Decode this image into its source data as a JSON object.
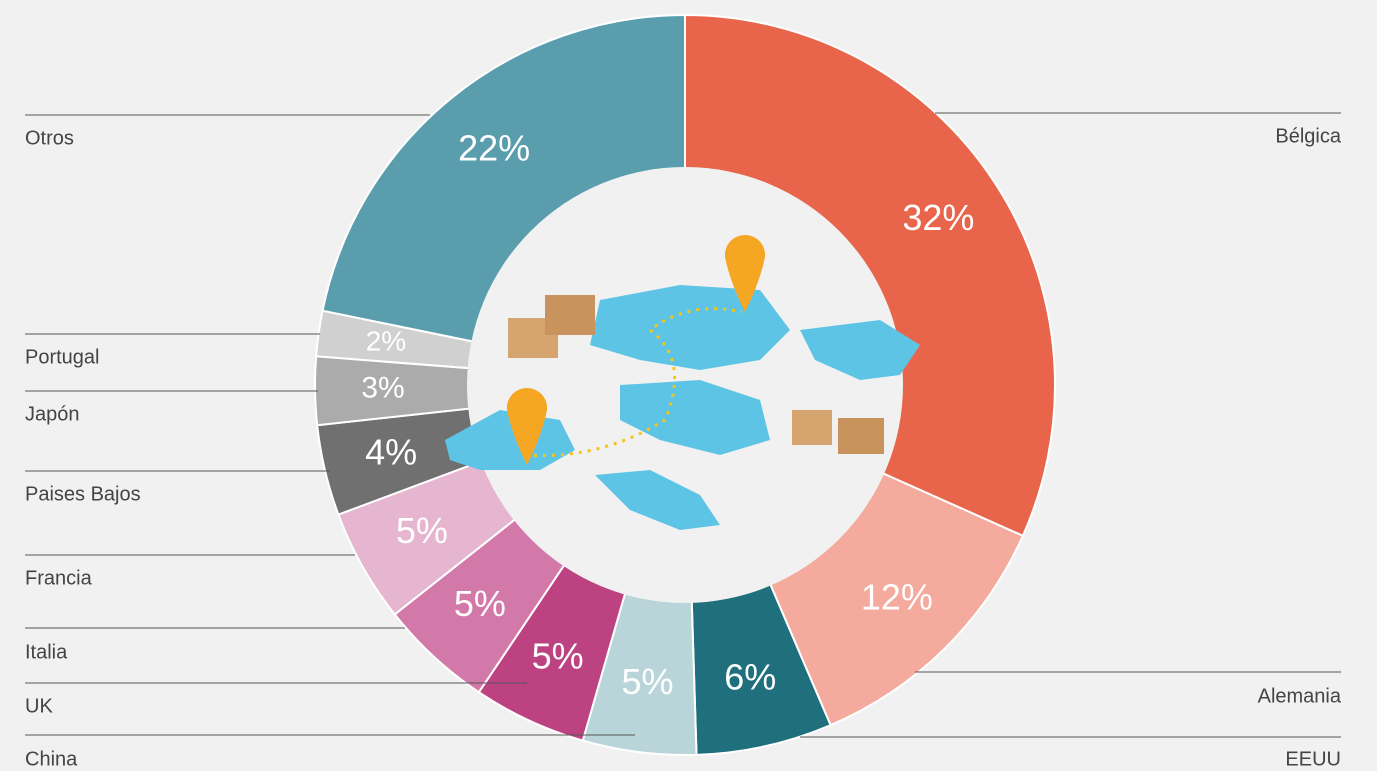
{
  "chart_data": {
    "type": "donut",
    "categories": [
      "Bélgica",
      "Alemania",
      "EEUU",
      "China",
      "UK",
      "Italia",
      "Francia",
      "Paises Bajos",
      "Japón",
      "Portugal",
      "Otros"
    ],
    "values": [
      32,
      12,
      6,
      5,
      5,
      5,
      5,
      4,
      3,
      2,
      22
    ],
    "value_labels": [
      "32%",
      "12%",
      "6%",
      "5%",
      "5%",
      "5%",
      "5%",
      "4%",
      "3%",
      "2%",
      "22%"
    ],
    "colors": [
      "#e8654b",
      "#f4aa9c",
      "#1f6f7c",
      "#b9d5d9",
      "#bc4282",
      "#d279a9",
      "#e6b5cf",
      "#707070",
      "#ababab",
      "#d0d0d0",
      "#5a9eae"
    ]
  }
}
